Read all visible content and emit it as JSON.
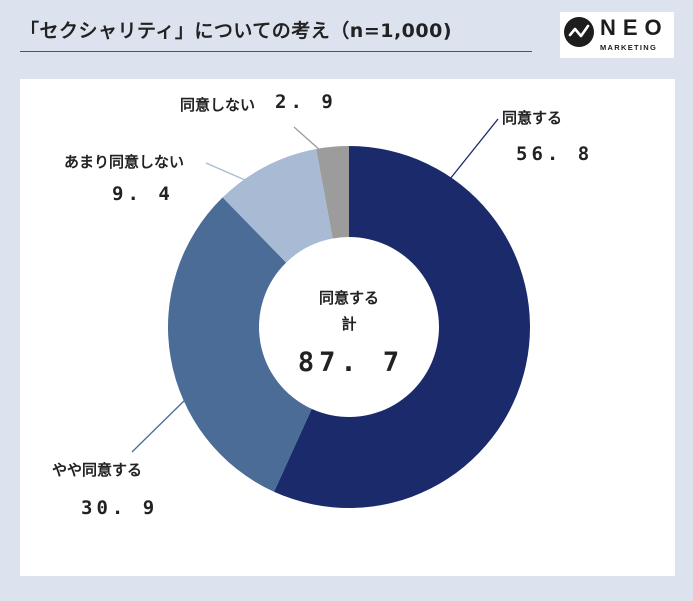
{
  "header": {
    "title": "「セクシャリティ」についての考え（n=1,000)"
  },
  "logo": {
    "word": "NEO",
    "sub": "MARKETING"
  },
  "center": {
    "label_line1": "同意する",
    "label_line2": "計",
    "value": "87. 7"
  },
  "colors": {
    "strongly_agree": "#1b2a6b",
    "somewhat_agree": "#4a6c96",
    "somewhat_disagree": "#a8bad4",
    "disagree": "#9c9c9c",
    "background": "#dde3ee",
    "panel": "#ffffff"
  },
  "labels": [
    {
      "name": "同意する",
      "value_text": "56. 8"
    },
    {
      "name": "やや同意する",
      "value_text": "30. 9"
    },
    {
      "name": "あまり同意しない",
      "value_text": "9. 4"
    },
    {
      "name": "同意しない",
      "value_text": "2. 9"
    }
  ],
  "chart_data": {
    "type": "pie",
    "variant": "donut",
    "title": "「セクシャリティ」についての考え（n=1,000)",
    "categories": [
      "同意する",
      "やや同意する",
      "あまり同意しない",
      "同意しない"
    ],
    "values": [
      56.8,
      30.9,
      9.4,
      2.9
    ],
    "colors": [
      "#1b2a6b",
      "#4a6c96",
      "#a8bad4",
      "#9c9c9c"
    ],
    "start": "12 o'clock",
    "direction": "clockwise",
    "center_total": {
      "label": "同意する 計",
      "value": 87.7
    },
    "legend": "none (direct labels)"
  }
}
